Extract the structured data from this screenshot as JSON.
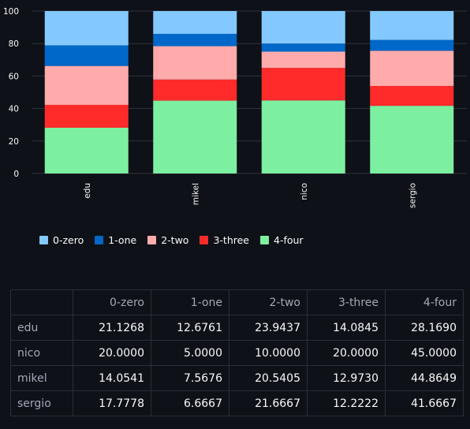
{
  "chart_data": {
    "type": "bar",
    "stacked": true,
    "categories": [
      "edu",
      "mikel",
      "nico",
      "sergio"
    ],
    "series": [
      {
        "name": "0-zero",
        "color": "#83c9ff",
        "values": [
          21.1268,
          14.0541,
          20.0,
          17.7778
        ]
      },
      {
        "name": "1-one",
        "color": "#0068c9",
        "values": [
          12.6761,
          7.5676,
          5.0,
          6.6667
        ]
      },
      {
        "name": "2-two",
        "color": "#ffabab",
        "values": [
          23.9437,
          20.5405,
          10.0,
          21.6667
        ]
      },
      {
        "name": "3-three",
        "color": "#ff2b2b",
        "values": [
          14.0845,
          12.973,
          20.0,
          12.2222
        ]
      },
      {
        "name": "4-four",
        "color": "#7defa1",
        "values": [
          28.169,
          44.8649,
          45.0,
          41.6667
        ]
      }
    ],
    "ylim": [
      0,
      100
    ],
    "yticks": [
      "0",
      "20",
      "40",
      "60",
      "80",
      "100"
    ],
    "legend_position": "bottom-left",
    "grid": true
  },
  "table": {
    "columns": [
      "0-zero",
      "1-one",
      "2-two",
      "3-three",
      "4-four"
    ],
    "rows": [
      {
        "label": "edu",
        "values": [
          "21.1268",
          "12.6761",
          "23.9437",
          "14.0845",
          "28.1690"
        ]
      },
      {
        "label": "nico",
        "values": [
          "20.0000",
          "5.0000",
          "10.0000",
          "20.0000",
          "45.0000"
        ]
      },
      {
        "label": "mikel",
        "values": [
          "14.0541",
          "7.5676",
          "20.5405",
          "12.9730",
          "44.8649"
        ]
      },
      {
        "label": "sergio",
        "values": [
          "17.7778",
          "6.6667",
          "21.6667",
          "12.2222",
          "41.6667"
        ]
      }
    ]
  }
}
